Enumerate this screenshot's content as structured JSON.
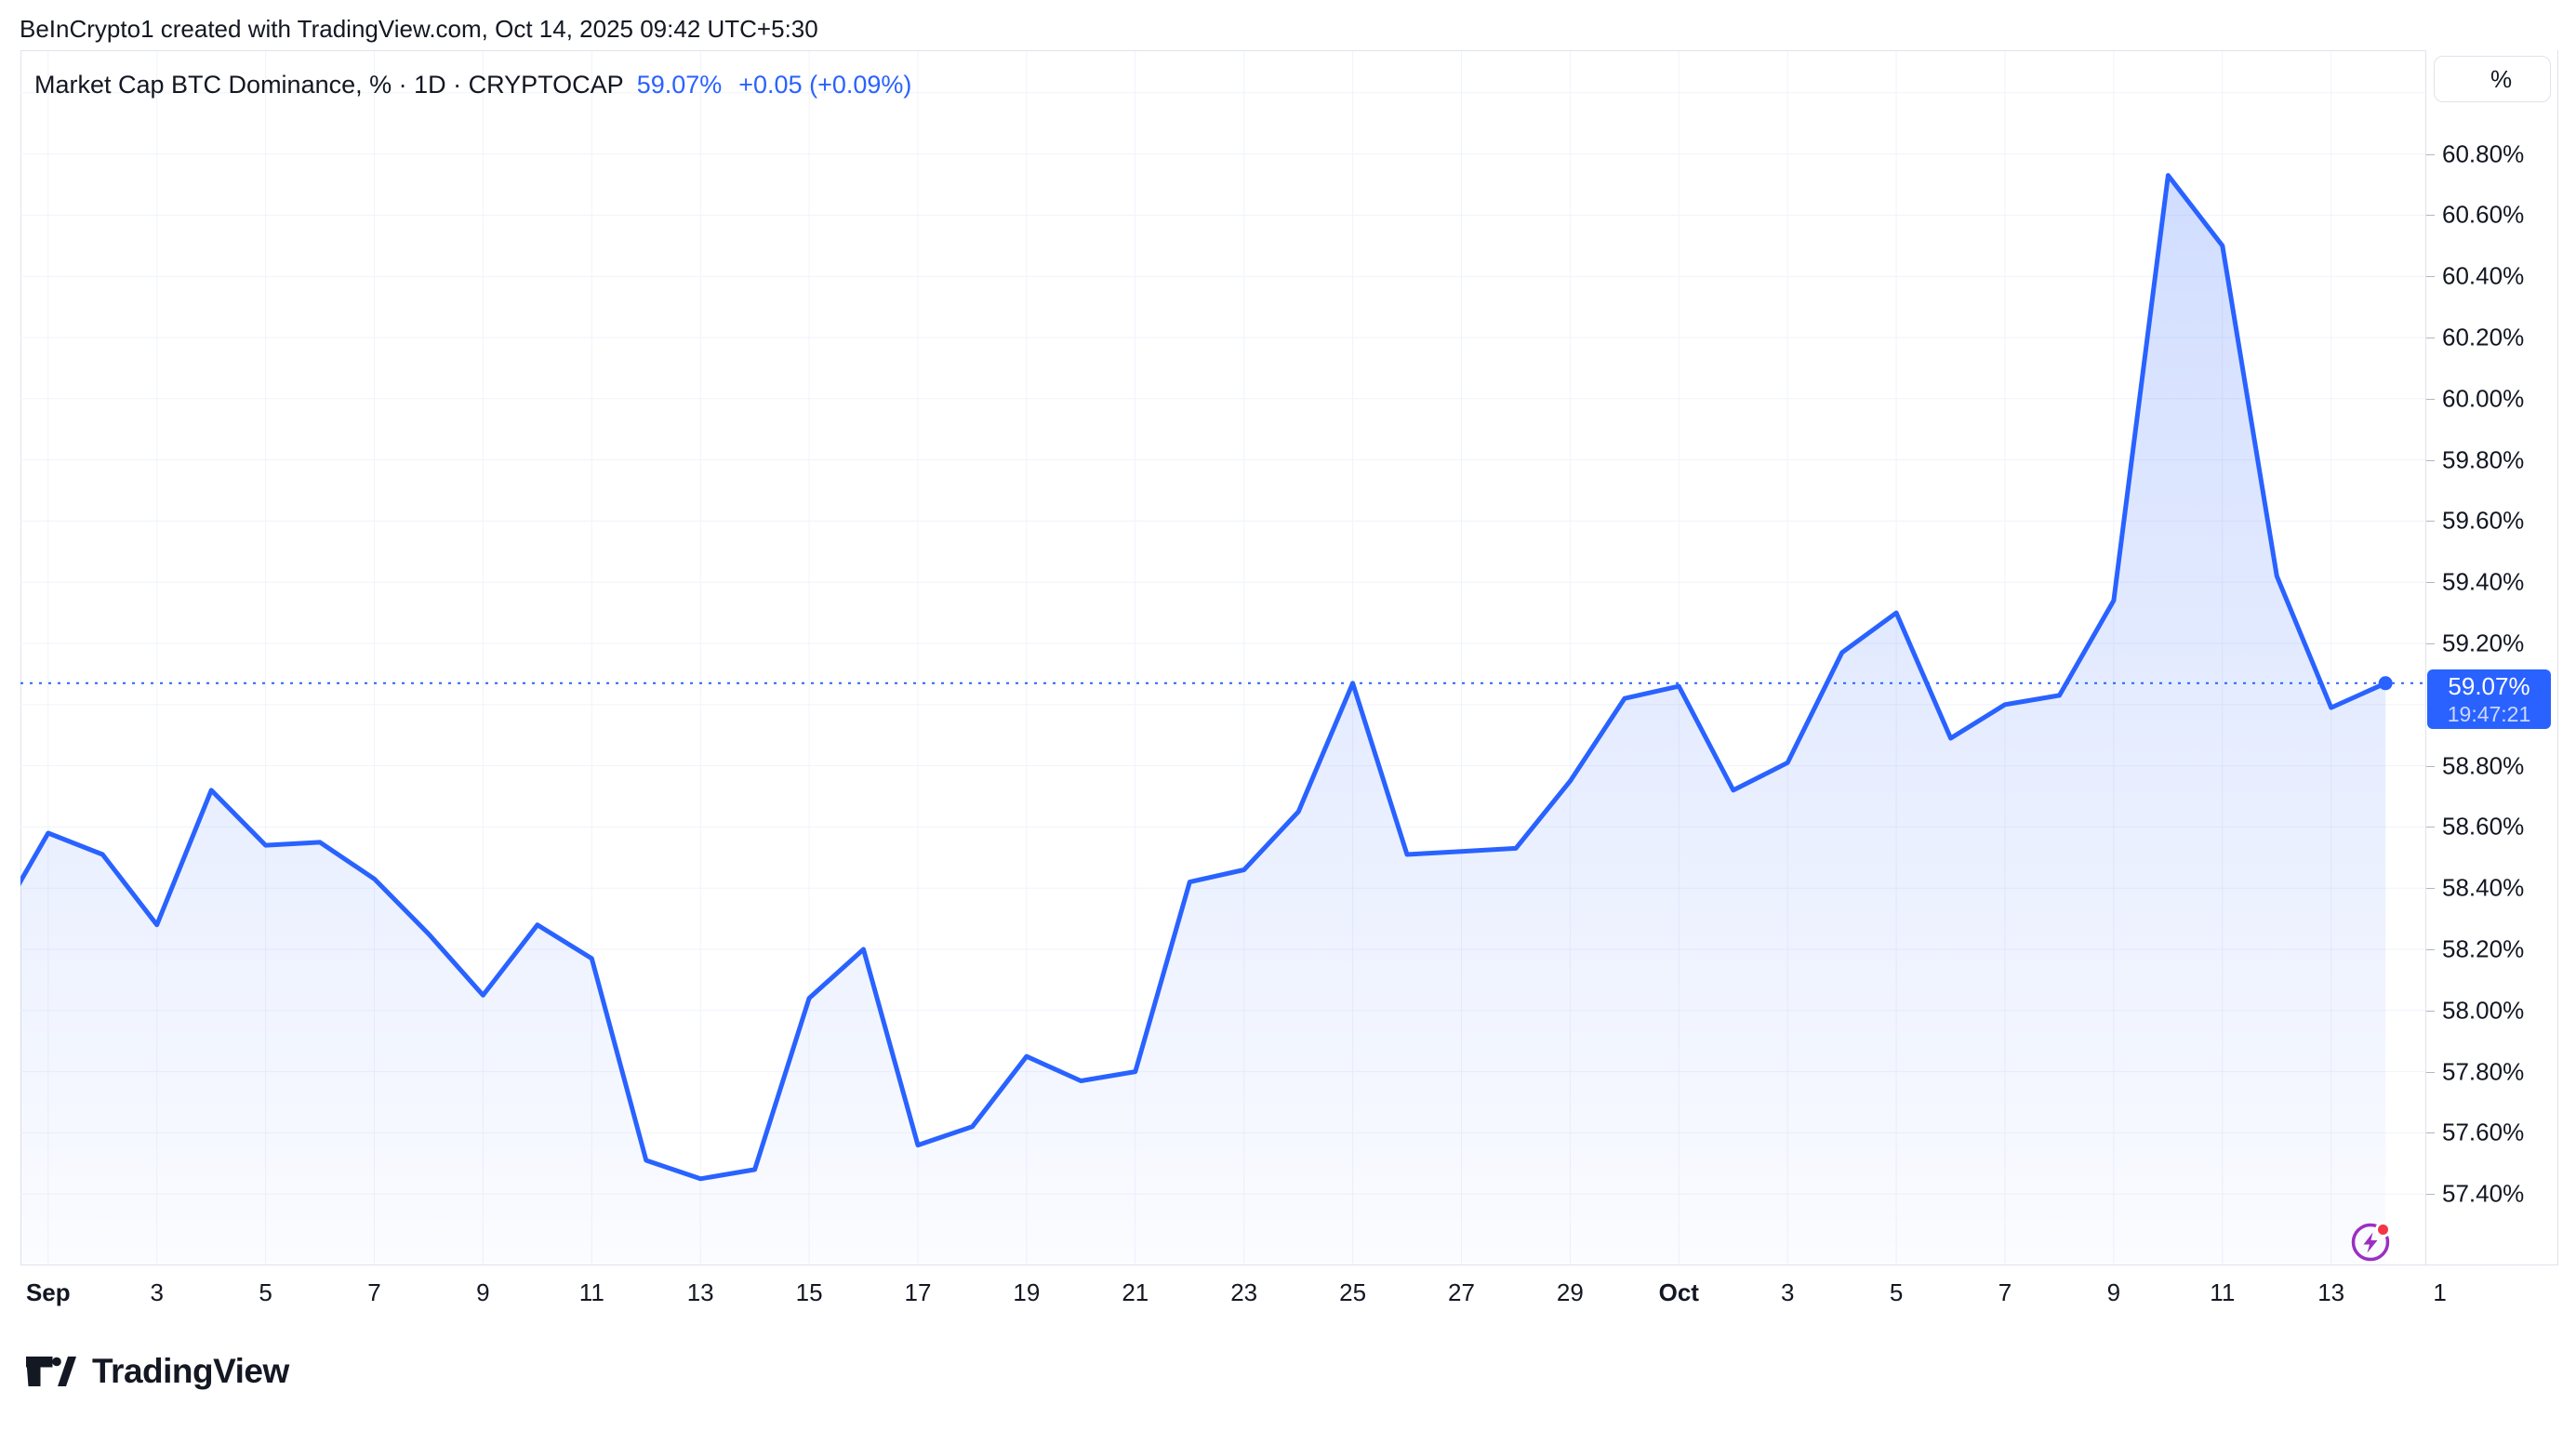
{
  "header": {
    "attribution": "BeInCrypto1 created with TradingView.com, Oct 14, 2025 09:42 UTC+5:30"
  },
  "legend": {
    "title": "Market Cap BTC Dominance, % · 1D · CRYPTOCAP",
    "value": "59.07%",
    "change": "+0.05 (+0.09%)"
  },
  "price_axis": {
    "unit_button": "%",
    "labels": [
      "60.80%",
      "60.60%",
      "60.40%",
      "60.20%",
      "60.00%",
      "59.80%",
      "59.60%",
      "59.40%",
      "59.20%",
      "58.80%",
      "58.60%",
      "58.40%",
      "58.20%",
      "58.00%",
      "57.80%",
      "57.60%",
      "57.40%"
    ],
    "current": {
      "value": "59.07%",
      "countdown": "19:47:21"
    }
  },
  "time_axis": {
    "ticks": [
      {
        "label": "Sep",
        "day": 0,
        "bold": true
      },
      {
        "label": "3",
        "day": 2
      },
      {
        "label": "5",
        "day": 4
      },
      {
        "label": "7",
        "day": 6
      },
      {
        "label": "9",
        "day": 8
      },
      {
        "label": "11",
        "day": 10
      },
      {
        "label": "13",
        "day": 12
      },
      {
        "label": "15",
        "day": 14
      },
      {
        "label": "17",
        "day": 16
      },
      {
        "label": "19",
        "day": 18
      },
      {
        "label": "21",
        "day": 20
      },
      {
        "label": "23",
        "day": 22
      },
      {
        "label": "25",
        "day": 24
      },
      {
        "label": "27",
        "day": 26
      },
      {
        "label": "29",
        "day": 28
      },
      {
        "label": "Oct",
        "day": 30,
        "bold": true
      },
      {
        "label": "3",
        "day": 32
      },
      {
        "label": "5",
        "day": 34
      },
      {
        "label": "7",
        "day": 36
      },
      {
        "label": "9",
        "day": 38
      },
      {
        "label": "11",
        "day": 40
      },
      {
        "label": "13",
        "day": 42
      },
      {
        "label": "1",
        "day": 44
      }
    ]
  },
  "footer": {
    "brand": "TradingView"
  },
  "colors": {
    "accent": "#2962FF",
    "grid": "#F0F3FA",
    "border": "#E0E3EB",
    "text": "#131722",
    "flash_purple": "#9B2FC2",
    "alert_red": "#F23645"
  },
  "chart_data": {
    "type": "area",
    "title": "Market Cap BTC Dominance, % · 1D · CRYPTOCAP",
    "ylabel": "%",
    "x": [
      "Aug 31",
      "Sep 1",
      "Sep 2",
      "Sep 3",
      "Sep 4",
      "Sep 5",
      "Sep 6",
      "Sep 7",
      "Sep 8",
      "Sep 9",
      "Sep 10",
      "Sep 11",
      "Sep 12",
      "Sep 13",
      "Sep 14",
      "Sep 15",
      "Sep 16",
      "Sep 17",
      "Sep 18",
      "Sep 19",
      "Sep 20",
      "Sep 21",
      "Sep 22",
      "Sep 23",
      "Sep 24",
      "Sep 25",
      "Sep 26",
      "Sep 27",
      "Sep 28",
      "Sep 29",
      "Sep 30",
      "Oct 1",
      "Oct 2",
      "Oct 3",
      "Oct 4",
      "Oct 5",
      "Oct 6",
      "Oct 7",
      "Oct 8",
      "Oct 9",
      "Oct 10",
      "Oct 11",
      "Oct 12",
      "Oct 13",
      "Oct 14"
    ],
    "values": [
      58.27,
      58.58,
      58.51,
      58.28,
      58.72,
      58.54,
      58.55,
      58.43,
      58.25,
      58.05,
      58.28,
      58.17,
      57.51,
      57.45,
      57.48,
      58.04,
      58.2,
      57.56,
      57.62,
      57.85,
      57.77,
      57.8,
      58.42,
      58.46,
      58.65,
      59.07,
      58.51,
      58.52,
      58.53,
      58.75,
      59.02,
      59.06,
      58.72,
      58.81,
      59.17,
      59.3,
      58.89,
      59.0,
      59.03,
      59.34,
      60.73,
      60.5,
      59.42,
      58.99,
      59.07
    ],
    "current_value": 59.07,
    "current_countdown": "19:47:21",
    "ylim": [
      57.17,
      61.14
    ],
    "y_grid_step": 0.2,
    "y_grid_min": 57.4,
    "y_grid_max": 61.0,
    "grid": true,
    "legend_position": "top-left",
    "line_color": "#2962FF"
  }
}
